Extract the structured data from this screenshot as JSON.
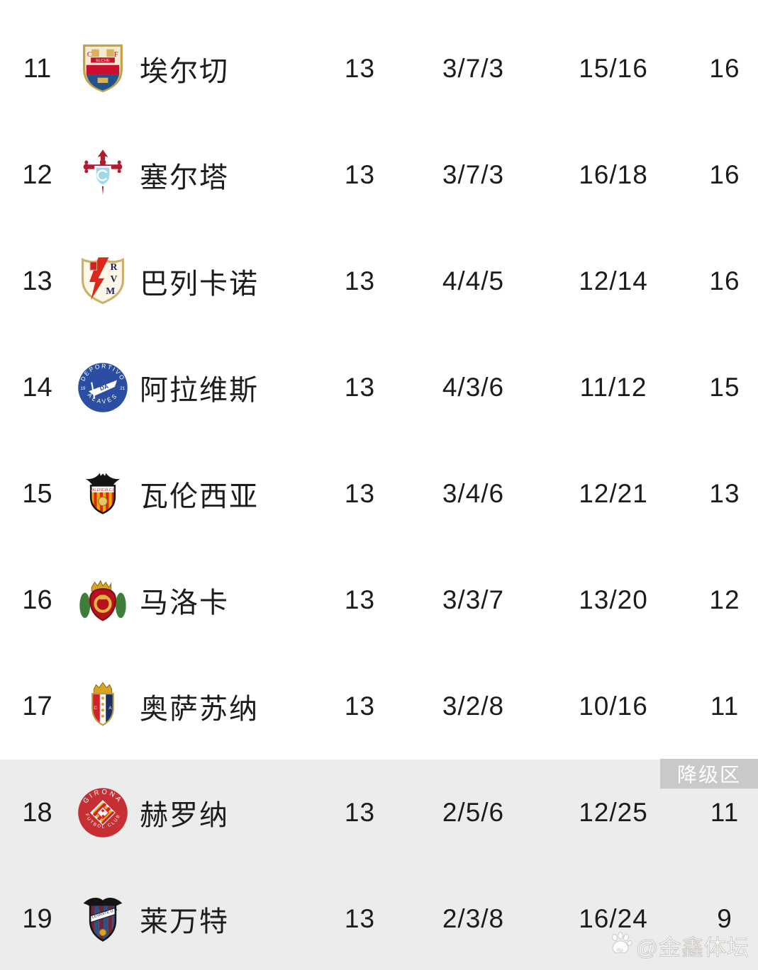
{
  "table": {
    "relegation_label": "降级区",
    "rows": [
      {
        "rank": "11",
        "team": "埃尔切",
        "crest": "elche",
        "played": "13",
        "wdl": "3/7/3",
        "goals": "15/16",
        "points": "16",
        "zone": "normal",
        "crest_text": [
          "C",
          "F",
          "ELCHE"
        ]
      },
      {
        "rank": "12",
        "team": "塞尔塔",
        "crest": "celta",
        "played": "13",
        "wdl": "3/7/3",
        "goals": "16/18",
        "points": "16",
        "zone": "normal",
        "crest_text": []
      },
      {
        "rank": "13",
        "team": "巴列卡诺",
        "crest": "rayo",
        "played": "13",
        "wdl": "4/4/5",
        "goals": "12/14",
        "points": "16",
        "zone": "normal",
        "crest_text": [
          "R",
          "V",
          "M"
        ]
      },
      {
        "rank": "14",
        "team": "阿拉维斯",
        "crest": "alaves",
        "played": "13",
        "wdl": "4/3/6",
        "goals": "11/12",
        "points": "15",
        "zone": "normal",
        "crest_text": [
          "DEPORTIVO",
          "ALAVÉS",
          "19",
          "21"
        ]
      },
      {
        "rank": "15",
        "team": "瓦伦西亚",
        "crest": "valencia",
        "played": "13",
        "wdl": "3/4/6",
        "goals": "12/21",
        "points": "13",
        "zone": "normal",
        "crest_text": [
          "VALENCIA C.F."
        ]
      },
      {
        "rank": "16",
        "team": "马洛卡",
        "crest": "mallorca",
        "played": "13",
        "wdl": "3/3/7",
        "goals": "13/20",
        "points": "12",
        "zone": "normal",
        "crest_text": []
      },
      {
        "rank": "17",
        "team": "奥萨苏纳",
        "crest": "osasuna",
        "played": "13",
        "wdl": "3/2/8",
        "goals": "10/16",
        "points": "11",
        "zone": "normal",
        "crest_text": [
          "C",
          "A"
        ]
      },
      {
        "rank": "18",
        "team": "赫罗纳",
        "crest": "girona",
        "played": "13",
        "wdl": "2/5/6",
        "goals": "12/25",
        "points": "11",
        "zone": "relegation",
        "crest_text": [
          "GIRONA",
          "FUTBOL CLUB"
        ]
      },
      {
        "rank": "19",
        "team": "莱万特",
        "crest": "levante",
        "played": "13",
        "wdl": "2/3/8",
        "goals": "16/24",
        "points": "9",
        "zone": "relegation",
        "crest_text": [
          "LEVANTE U.D."
        ]
      }
    ]
  },
  "watermark": {
    "text": "@金鑫体坛",
    "icon": "baidu-paw-icon"
  },
  "colors": {
    "background": "#ffffff",
    "relegation_bg": "#edecec",
    "badge_bg": "#c9c9c9",
    "badge_text": "#ffffff",
    "text": "#1c1c1c"
  }
}
